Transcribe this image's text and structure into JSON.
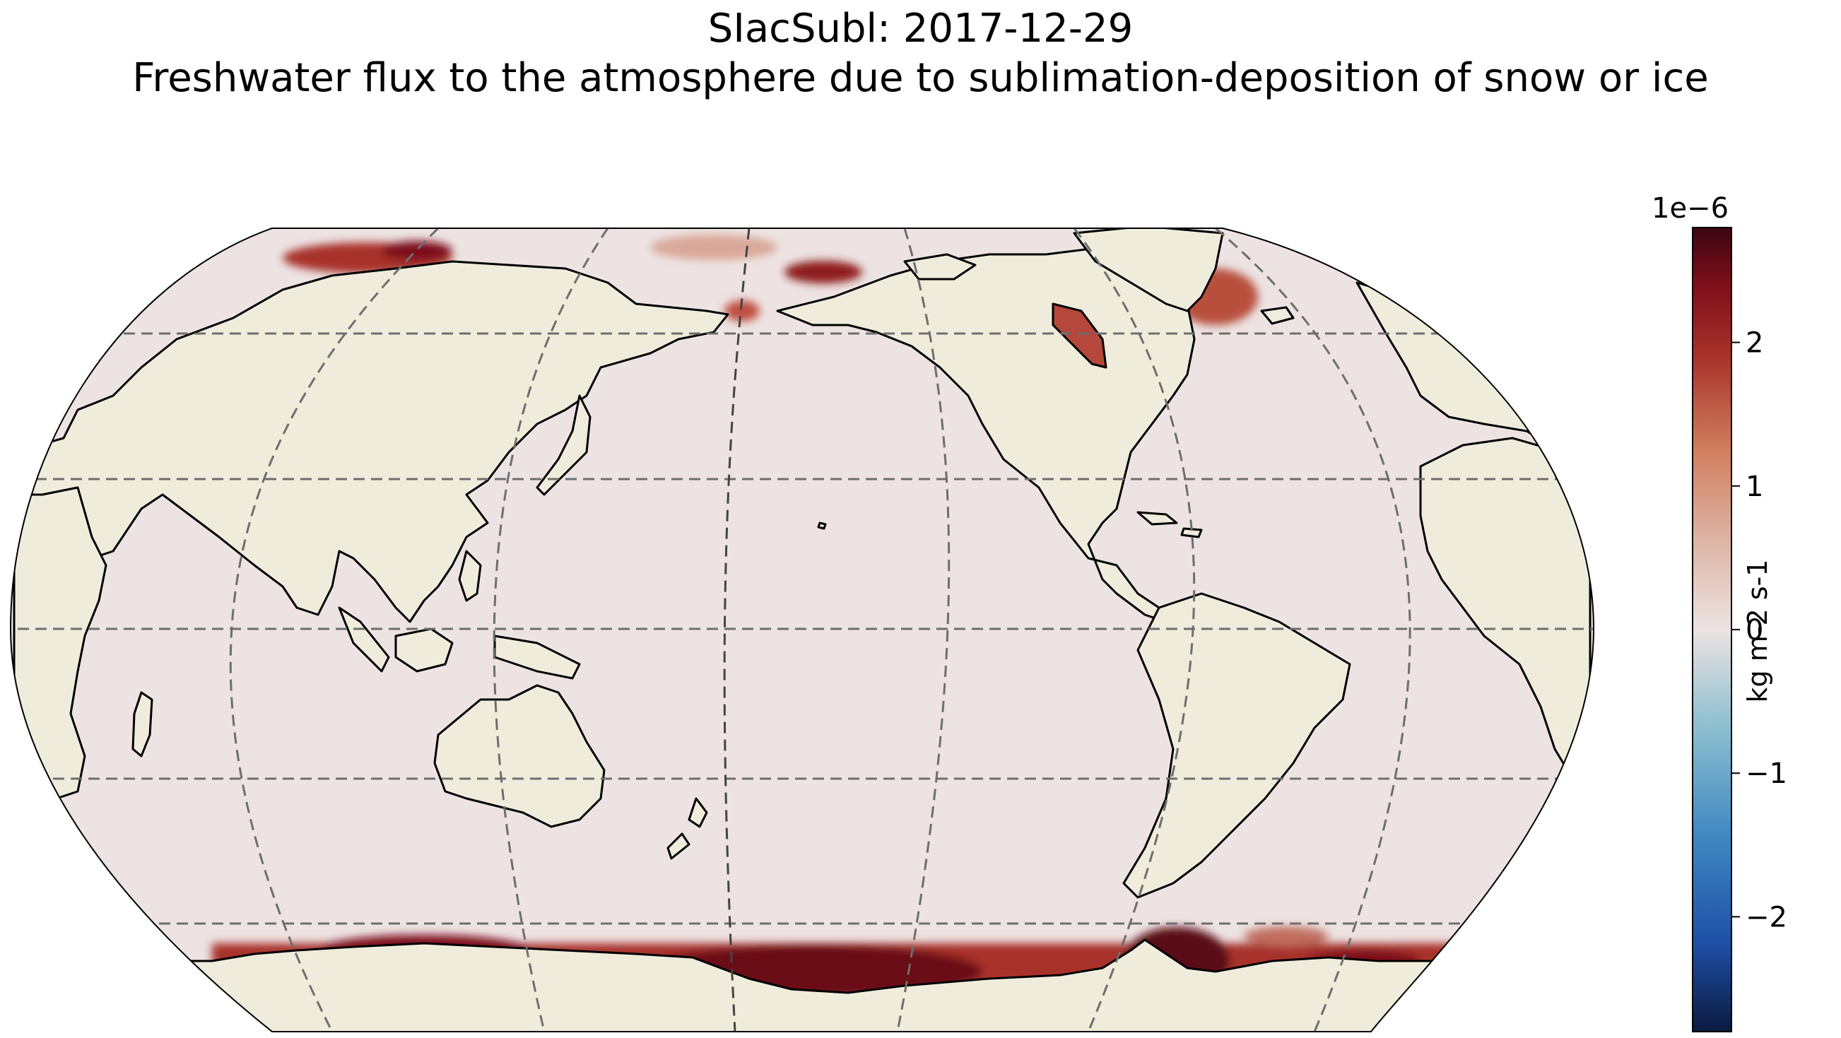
{
  "title": {
    "line1": "SIacSubl: 2017-12-29",
    "line2": "Freshwater flux to the atmosphere due to sublimation-deposition of snow or ice"
  },
  "colorbar": {
    "exponent_label": "1e−6",
    "units_label": "kg m-2 s-1",
    "ticks": [
      "2",
      "1",
      "0",
      "−1",
      "−2"
    ],
    "tick_values": [
      2,
      1,
      0,
      -1,
      -2
    ],
    "range": [
      -2.8,
      2.8
    ],
    "colormap": [
      "#0b1a3f",
      "#1f50a6",
      "#3f86c0",
      "#8ebfd0",
      "#ece3e2",
      "#dcb0a0",
      "#d08060",
      "#a8322a",
      "#7d0f1a",
      "#3b0512"
    ]
  },
  "chart_data": {
    "type": "heatmap",
    "title": "SIacSubl: 2017-12-29",
    "subtitle": "Freshwater flux to the atmosphere due to sublimation-deposition of snow or ice",
    "variable": "SIacSubl",
    "date": "2017-12-29",
    "units": "kg m-2 s-1",
    "scale": "1e-6",
    "projection": "Robinson, centered on the Pacific",
    "value_range": [
      -2.8,
      2.8
    ],
    "background_value": 0.1,
    "land_color": "#efecdc",
    "gridlines": {
      "latitudes": [
        -60,
        -30,
        0,
        30,
        60
      ],
      "longitudes": [
        -120,
        -60,
        0,
        60,
        120,
        180
      ],
      "style": "dashed"
    },
    "regions": [
      {
        "name": "Antarctic coast, Ross Sea",
        "value": 2.8
      },
      {
        "name": "Antarctic coast, Weddell Sea",
        "value": 2.8
      },
      {
        "name": "Antarctic coast, Indian Ocean sector",
        "value": 1.8
      },
      {
        "name": "Hudson Bay",
        "value": 2.5
      },
      {
        "name": "Sea of Okhotsk",
        "value": 2.4
      },
      {
        "name": "Barents and Kara Seas",
        "value": 2.2
      },
      {
        "name": "Bering Strait",
        "value": 1.9
      },
      {
        "name": "Central Arctic",
        "value": 1.6
      },
      {
        "name": "Baffin Bay",
        "value": 1.5
      },
      {
        "name": "Greenland Sea",
        "value": 1.8
      },
      {
        "name": "Open ocean",
        "value": 0.1
      }
    ]
  }
}
